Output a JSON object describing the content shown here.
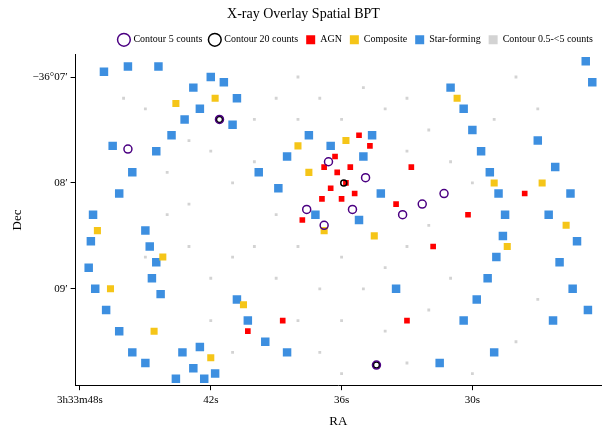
{
  "chart_data": {
    "type": "scatter",
    "title": "X-ray Overlay Spatial BPT",
    "x_label": "RA",
    "y_label": "Dec",
    "xlim": [
      48.2,
      24.1
    ],
    "ylim": [
      9.91,
      6.79
    ],
    "xticks": [
      {
        "value": 48,
        "label": "3h33m48s"
      },
      {
        "value": 42,
        "label": "42s"
      },
      {
        "value": 36,
        "label": "36s"
      },
      {
        "value": 30,
        "label": "30s"
      }
    ],
    "yticks": [
      {
        "value": 7,
        "label": "−36°07′"
      },
      {
        "value": 8,
        "label": "08′"
      },
      {
        "value": 9,
        "label": "09′"
      }
    ],
    "grid": false,
    "legend": "top",
    "series": [
      {
        "name": "Contour 0.5-<5 counts",
        "color": "#d3d3d3",
        "marker": "square",
        "points": [
          [
            45,
            7.3
          ],
          [
            44,
            7.9
          ],
          [
            43,
            8.2
          ],
          [
            42,
            7.7
          ],
          [
            41,
            8.0
          ],
          [
            40,
            7.4
          ],
          [
            39,
            7.2
          ],
          [
            38,
            7.0
          ],
          [
            37,
            7.2
          ],
          [
            36,
            7.4
          ],
          [
            35,
            7.1
          ],
          [
            34,
            7.3
          ],
          [
            33,
            7.2
          ],
          [
            32,
            7.5
          ],
          [
            31,
            7.8
          ],
          [
            33,
            7.7
          ],
          [
            32,
            8.4
          ],
          [
            31,
            8.9
          ],
          [
            32,
            9.2
          ],
          [
            34,
            9.4
          ],
          [
            35,
            9.0
          ],
          [
            36,
            8.7
          ],
          [
            37,
            9.0
          ],
          [
            38,
            9.3
          ],
          [
            39,
            8.9
          ],
          [
            40,
            8.6
          ],
          [
            41,
            8.7
          ],
          [
            42,
            8.9
          ],
          [
            43,
            8.6
          ],
          [
            42,
            9.3
          ],
          [
            41,
            9.6
          ],
          [
            37,
            9.6
          ],
          [
            36,
            9.8
          ],
          [
            33,
            9.7
          ],
          [
            30,
            9.8
          ],
          [
            28,
            9.5
          ],
          [
            27,
            9.1
          ],
          [
            27,
            7.3
          ],
          [
            28,
            7.0
          ],
          [
            29,
            7.4
          ],
          [
            30,
            8.0
          ],
          [
            43,
            7.6
          ],
          [
            44,
            8.3
          ],
          [
            45,
            8.7
          ],
          [
            46,
            7.2
          ],
          [
            39,
            8.3
          ],
          [
            38,
            8.6
          ],
          [
            34,
            8.8
          ],
          [
            33,
            8.6
          ],
          [
            40,
            7.8
          ],
          [
            36,
            9.3
          ],
          [
            38,
            7.4
          ]
        ]
      },
      {
        "name": "Contour 5 counts",
        "color": "#4b0082",
        "marker": "ring",
        "points": [
          [
            45.8,
            7.68
          ],
          [
            34.4,
            9.72
          ],
          [
            32.3,
            8.2
          ],
          [
            31.3,
            8.1
          ],
          [
            33.2,
            8.3
          ],
          [
            37.6,
            8.25
          ],
          [
            36.8,
            8.4
          ],
          [
            34.9,
            7.95
          ],
          [
            35.5,
            8.25
          ],
          [
            36.6,
            7.8
          ],
          [
            41.6,
            7.4
          ]
        ]
      },
      {
        "name": "Contour 20 counts",
        "color": "#000000",
        "marker": "ring",
        "points": [
          [
            41.6,
            7.4
          ],
          [
            34.4,
            9.72
          ],
          [
            35.9,
            8.0
          ]
        ]
      },
      {
        "name": "Star-forming",
        "color": "#3d8fe0",
        "marker": "square",
        "points": [
          [
            47.4,
            8.3
          ],
          [
            47.5,
            8.55
          ],
          [
            47.6,
            8.8
          ],
          [
            47.3,
            9.0
          ],
          [
            46.8,
            9.2
          ],
          [
            46.2,
            9.4
          ],
          [
            45.6,
            9.6
          ],
          [
            45.0,
            9.7
          ],
          [
            43.3,
            9.6
          ],
          [
            42.8,
            9.75
          ],
          [
            42.3,
            9.85
          ],
          [
            41.8,
            9.8
          ],
          [
            43.6,
            9.85
          ],
          [
            42.5,
            9.55
          ],
          [
            45.0,
            8.45
          ],
          [
            44.8,
            8.6
          ],
          [
            44.5,
            8.75
          ],
          [
            44.7,
            8.9
          ],
          [
            44.3,
            9.05
          ],
          [
            42.8,
            7.1
          ],
          [
            42.0,
            7.0
          ],
          [
            41.4,
            7.05
          ],
          [
            40.8,
            7.2
          ],
          [
            42.5,
            7.3
          ],
          [
            41.0,
            7.45
          ],
          [
            43.2,
            7.4
          ],
          [
            43.8,
            7.55
          ],
          [
            44.5,
            7.7
          ],
          [
            46.9,
            6.95
          ],
          [
            45.8,
            6.9
          ],
          [
            44.4,
            6.9
          ],
          [
            46.5,
            7.65
          ],
          [
            45.6,
            7.9
          ],
          [
            46.2,
            8.1
          ],
          [
            31.0,
            7.1
          ],
          [
            30.4,
            7.3
          ],
          [
            30.0,
            7.5
          ],
          [
            29.6,
            7.7
          ],
          [
            29.2,
            7.9
          ],
          [
            28.8,
            8.1
          ],
          [
            28.5,
            8.3
          ],
          [
            28.6,
            8.5
          ],
          [
            28.9,
            8.7
          ],
          [
            29.3,
            8.9
          ],
          [
            29.8,
            9.1
          ],
          [
            30.4,
            9.3
          ],
          [
            27.0,
            7.6
          ],
          [
            26.2,
            7.85
          ],
          [
            25.5,
            8.1
          ],
          [
            26.5,
            8.3
          ],
          [
            25.2,
            8.55
          ],
          [
            26.0,
            8.75
          ],
          [
            25.4,
            9.0
          ],
          [
            24.7,
            9.2
          ],
          [
            26.3,
            9.3
          ],
          [
            24.8,
            6.85
          ],
          [
            24.5,
            7.05
          ],
          [
            40.8,
            9.1
          ],
          [
            40.3,
            9.3
          ],
          [
            39.5,
            9.5
          ],
          [
            38.5,
            9.6
          ],
          [
            37.5,
            7.55
          ],
          [
            36.5,
            7.65
          ],
          [
            35.0,
            7.75
          ],
          [
            34.2,
            8.1
          ],
          [
            35.2,
            8.35
          ],
          [
            37.2,
            8.3
          ],
          [
            38.5,
            7.75
          ],
          [
            34.6,
            7.55
          ],
          [
            39.8,
            7.9
          ],
          [
            38.9,
            8.05
          ],
          [
            31.5,
            9.7
          ],
          [
            33.5,
            9.0
          ],
          [
            29.0,
            9.6
          ]
        ]
      },
      {
        "name": "Composite",
        "color": "#f5c518",
        "marker": "square",
        "points": [
          [
            43.6,
            7.25
          ],
          [
            41.8,
            7.2
          ],
          [
            47.2,
            8.45
          ],
          [
            46.6,
            9.0
          ],
          [
            44.6,
            9.4
          ],
          [
            42.0,
            9.65
          ],
          [
            30.7,
            7.2
          ],
          [
            29.0,
            8.0
          ],
          [
            28.4,
            8.6
          ],
          [
            26.8,
            8.0
          ],
          [
            38.0,
            7.65
          ],
          [
            37.5,
            7.9
          ],
          [
            34.5,
            8.5
          ],
          [
            36.8,
            8.45
          ],
          [
            35.8,
            7.6
          ],
          [
            25.7,
            8.4
          ],
          [
            40.5,
            9.15
          ],
          [
            44.2,
            8.7
          ]
        ]
      },
      {
        "name": "AGN",
        "color": "#ff0000",
        "marker": "square",
        "points": [
          [
            36.8,
            7.85
          ],
          [
            36.2,
            7.9
          ],
          [
            35.8,
            8.0
          ],
          [
            36.5,
            8.05
          ],
          [
            36.0,
            8.15
          ],
          [
            35.6,
            7.85
          ],
          [
            36.9,
            8.15
          ],
          [
            35.4,
            8.1
          ],
          [
            36.3,
            7.75
          ],
          [
            35.2,
            7.55
          ],
          [
            34.7,
            7.65
          ],
          [
            37.8,
            8.35
          ],
          [
            33.5,
            8.2
          ],
          [
            32.8,
            7.85
          ],
          [
            40.3,
            9.4
          ],
          [
            38.7,
            9.3
          ],
          [
            31.8,
            8.6
          ],
          [
            30.2,
            8.3
          ],
          [
            33.0,
            9.3
          ],
          [
            27.6,
            8.1
          ]
        ]
      }
    ]
  }
}
